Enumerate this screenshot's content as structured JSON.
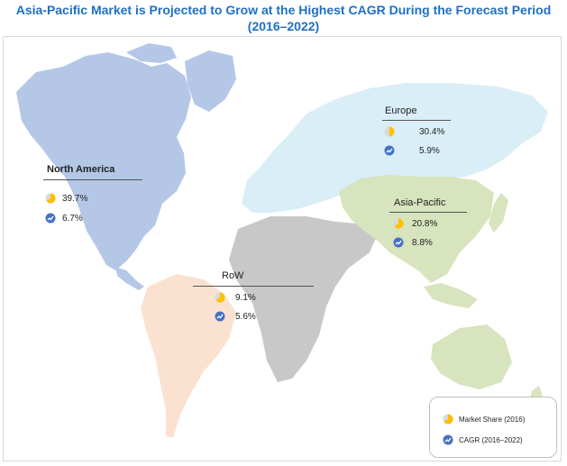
{
  "title_line1": "Asia-Pacific Market is Projected to Grow at the Highest CAGR During the Forecast Period",
  "title_line2": "(2016–2022)",
  "regions": {
    "north_america": {
      "label": "North America",
      "share": "39.7%",
      "cagr": "6.7%",
      "color": "#b4c7e7"
    },
    "europe": {
      "label": "Europe",
      "share": "30.4%",
      "cagr": "5.9%",
      "color": "#d9eef7"
    },
    "asia_pacific": {
      "label": "Asia-Pacific",
      "share": "20.8%",
      "cagr": "8.8%",
      "color": "#d7e4bd"
    },
    "row": {
      "label": "RoW",
      "share": "9.1%",
      "cagr": "5.6%",
      "color": "#fbe2d0"
    }
  },
  "other_land_color": "#c8c8c8",
  "legend": {
    "share_label": "Market Share (2016)",
    "cagr_label": "CAGR (2016–2022)"
  },
  "icons": {
    "share": "pie-share-icon",
    "cagr": "growth-arrow-icon"
  },
  "colors": {
    "title": "#1f6fc5",
    "pie_yellow": "#ffc000",
    "pie_grey": "#d9d9d9",
    "cagr_blue": "#4472c4"
  }
}
